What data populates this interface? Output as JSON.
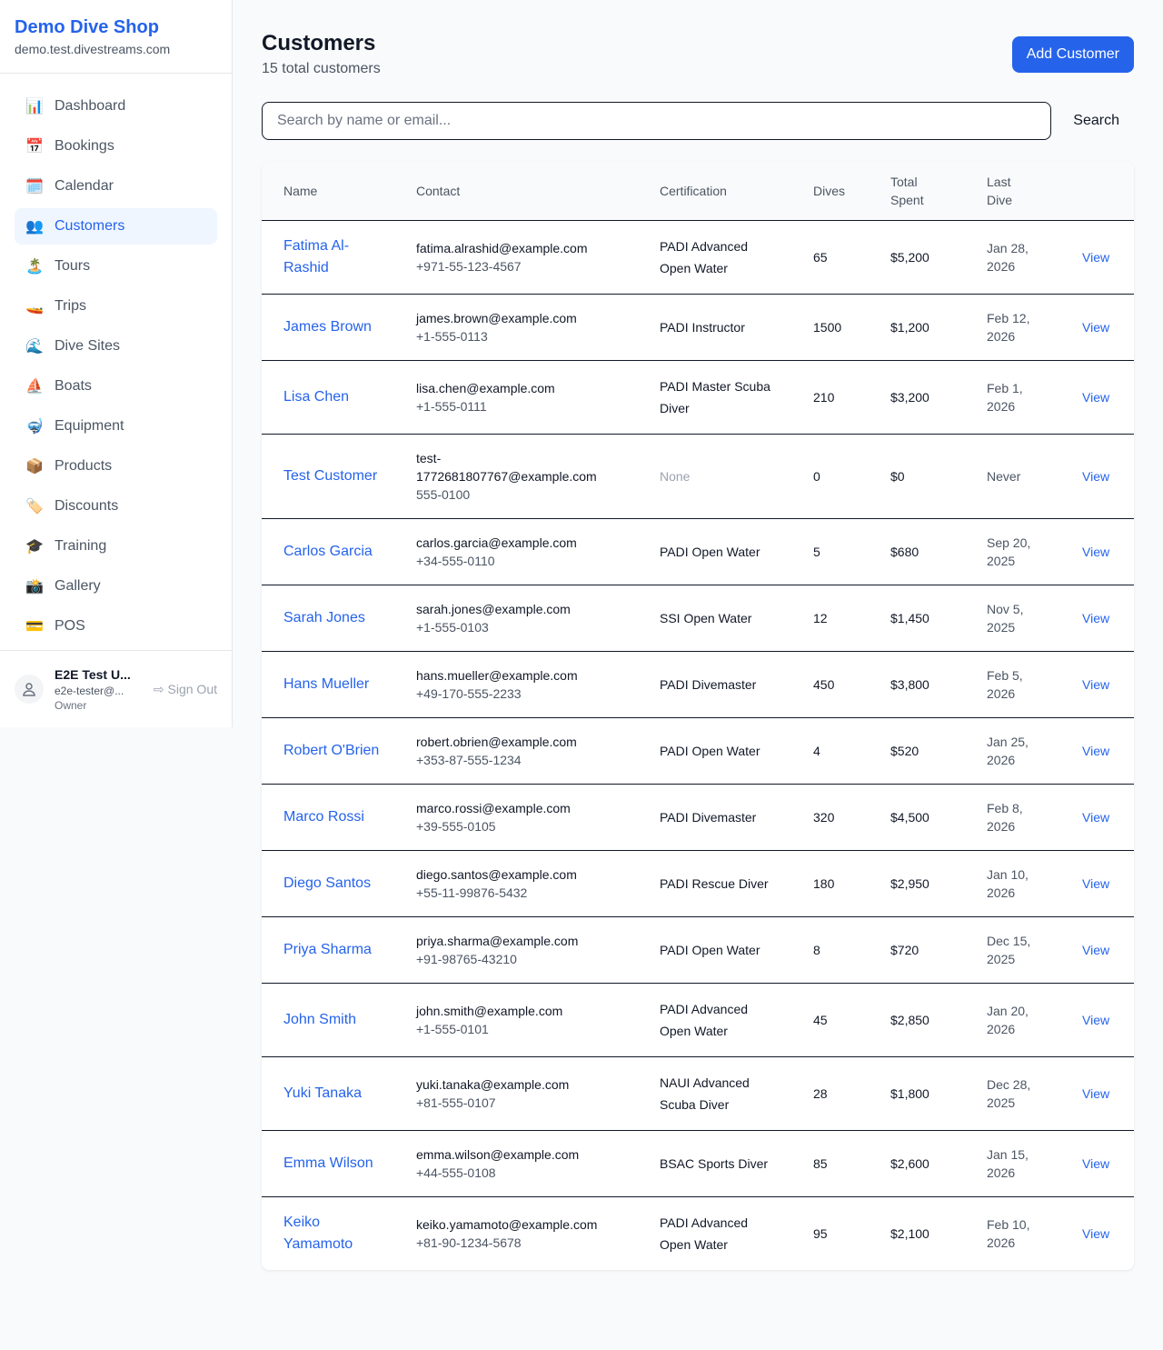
{
  "brand": {
    "name": "Demo Dive Shop",
    "url": "demo.test.divestreams.com"
  },
  "nav": [
    {
      "label": "Dashboard",
      "icon": "📊",
      "icon_name": "bar-chart-icon"
    },
    {
      "label": "Bookings",
      "icon": "📅",
      "icon_name": "calendar-date-icon"
    },
    {
      "label": "Calendar",
      "icon": "🗓️",
      "icon_name": "calendar-icon"
    },
    {
      "label": "Customers",
      "icon": "👥",
      "icon_name": "users-icon",
      "active": true
    },
    {
      "label": "Tours",
      "icon": "🏝️",
      "icon_name": "island-icon"
    },
    {
      "label": "Trips",
      "icon": "🚤",
      "icon_name": "speedboat-icon"
    },
    {
      "label": "Dive Sites",
      "icon": "🌊",
      "icon_name": "wave-icon"
    },
    {
      "label": "Boats",
      "icon": "⛵",
      "icon_name": "sailboat-icon"
    },
    {
      "label": "Equipment",
      "icon": "🤿",
      "icon_name": "diving-mask-icon"
    },
    {
      "label": "Products",
      "icon": "📦",
      "icon_name": "package-icon"
    },
    {
      "label": "Discounts",
      "icon": "🏷️",
      "icon_name": "tag-icon"
    },
    {
      "label": "Training",
      "icon": "🎓",
      "icon_name": "graduation-cap-icon"
    },
    {
      "label": "Gallery",
      "icon": "📸",
      "icon_name": "camera-icon"
    },
    {
      "label": "POS",
      "icon": "💳",
      "icon_name": "credit-card-icon"
    }
  ],
  "user": {
    "name": "E2E Test U...",
    "email": "e2e-tester@...",
    "role": "Owner",
    "sign_out": "Sign Out"
  },
  "page": {
    "title": "Customers",
    "subtitle": "15 total customers",
    "add_button": "Add Customer",
    "search_placeholder": "Search by name or email...",
    "search_value": "",
    "search_button": "Search"
  },
  "table": {
    "headers": {
      "name": "Name",
      "contact": "Contact",
      "certification": "Certification",
      "dives": "Dives",
      "total_spent": "Total Spent",
      "last_dive": "Last Dive"
    },
    "rows": [
      {
        "name": "Fatima Al-Rashid",
        "email": "fatima.alrashid@example.com",
        "phone": "+971-55-123-4567",
        "cert": "PADI Advanced Open Water",
        "dives": "65",
        "spent": "$5,200",
        "last": "Jan 28, 2026",
        "action": "View"
      },
      {
        "name": "James Brown",
        "email": "james.brown@example.com",
        "phone": "+1-555-0113",
        "cert": "PADI Instructor",
        "dives": "1500",
        "spent": "$1,200",
        "last": "Feb 12, 2026",
        "action": "View"
      },
      {
        "name": "Lisa Chen",
        "email": "lisa.chen@example.com",
        "phone": "+1-555-0111",
        "cert": "PADI Master Scuba Diver",
        "dives": "210",
        "spent": "$3,200",
        "last": "Feb 1, 2026",
        "action": "View"
      },
      {
        "name": "Test Customer",
        "email": "test-1772681807767@example.com",
        "phone": "555-0100",
        "cert": "None",
        "dives": "0",
        "spent": "$0",
        "last": "Never",
        "action": "View"
      },
      {
        "name": "Carlos Garcia",
        "email": "carlos.garcia@example.com",
        "phone": "+34-555-0110",
        "cert": "PADI Open Water",
        "dives": "5",
        "spent": "$680",
        "last": "Sep 20, 2025",
        "action": "View"
      },
      {
        "name": "Sarah Jones",
        "email": "sarah.jones@example.com",
        "phone": "+1-555-0103",
        "cert": "SSI Open Water",
        "dives": "12",
        "spent": "$1,450",
        "last": "Nov 5, 2025",
        "action": "View"
      },
      {
        "name": "Hans Mueller",
        "email": "hans.mueller@example.com",
        "phone": "+49-170-555-2233",
        "cert": "PADI Divemaster",
        "dives": "450",
        "spent": "$3,800",
        "last": "Feb 5, 2026",
        "action": "View"
      },
      {
        "name": "Robert O'Brien",
        "email": "robert.obrien@example.com",
        "phone": "+353-87-555-1234",
        "cert": "PADI Open Water",
        "dives": "4",
        "spent": "$520",
        "last": "Jan 25, 2026",
        "action": "View"
      },
      {
        "name": "Marco Rossi",
        "email": "marco.rossi@example.com",
        "phone": "+39-555-0105",
        "cert": "PADI Divemaster",
        "dives": "320",
        "spent": "$4,500",
        "last": "Feb 8, 2026",
        "action": "View"
      },
      {
        "name": "Diego Santos",
        "email": "diego.santos@example.com",
        "phone": "+55-11-99876-5432",
        "cert": "PADI Rescue Diver",
        "dives": "180",
        "spent": "$2,950",
        "last": "Jan 10, 2026",
        "action": "View"
      },
      {
        "name": "Priya Sharma",
        "email": "priya.sharma@example.com",
        "phone": "+91-98765-43210",
        "cert": "PADI Open Water",
        "dives": "8",
        "spent": "$720",
        "last": "Dec 15, 2025",
        "action": "View"
      },
      {
        "name": "John Smith",
        "email": "john.smith@example.com",
        "phone": "+1-555-0101",
        "cert": "PADI Advanced Open Water",
        "dives": "45",
        "spent": "$2,850",
        "last": "Jan 20, 2026",
        "action": "View"
      },
      {
        "name": "Yuki Tanaka",
        "email": "yuki.tanaka@example.com",
        "phone": "+81-555-0107",
        "cert": "NAUI Advanced Scuba Diver",
        "dives": "28",
        "spent": "$1,800",
        "last": "Dec 28, 2025",
        "action": "View"
      },
      {
        "name": "Emma Wilson",
        "email": "emma.wilson@example.com",
        "phone": "+44-555-0108",
        "cert": "BSAC Sports Diver",
        "dives": "85",
        "spent": "$2,600",
        "last": "Jan 15, 2026",
        "action": "View"
      },
      {
        "name": "Keiko Yamamoto",
        "email": "keiko.yamamoto@example.com",
        "phone": "+81-90-1234-5678",
        "cert": "PADI Advanced Open Water",
        "dives": "95",
        "spent": "$2,100",
        "last": "Feb 10, 2026",
        "action": "View"
      }
    ]
  },
  "colors": {
    "accent": "#2563eb",
    "active_bg": "#eff6ff"
  }
}
